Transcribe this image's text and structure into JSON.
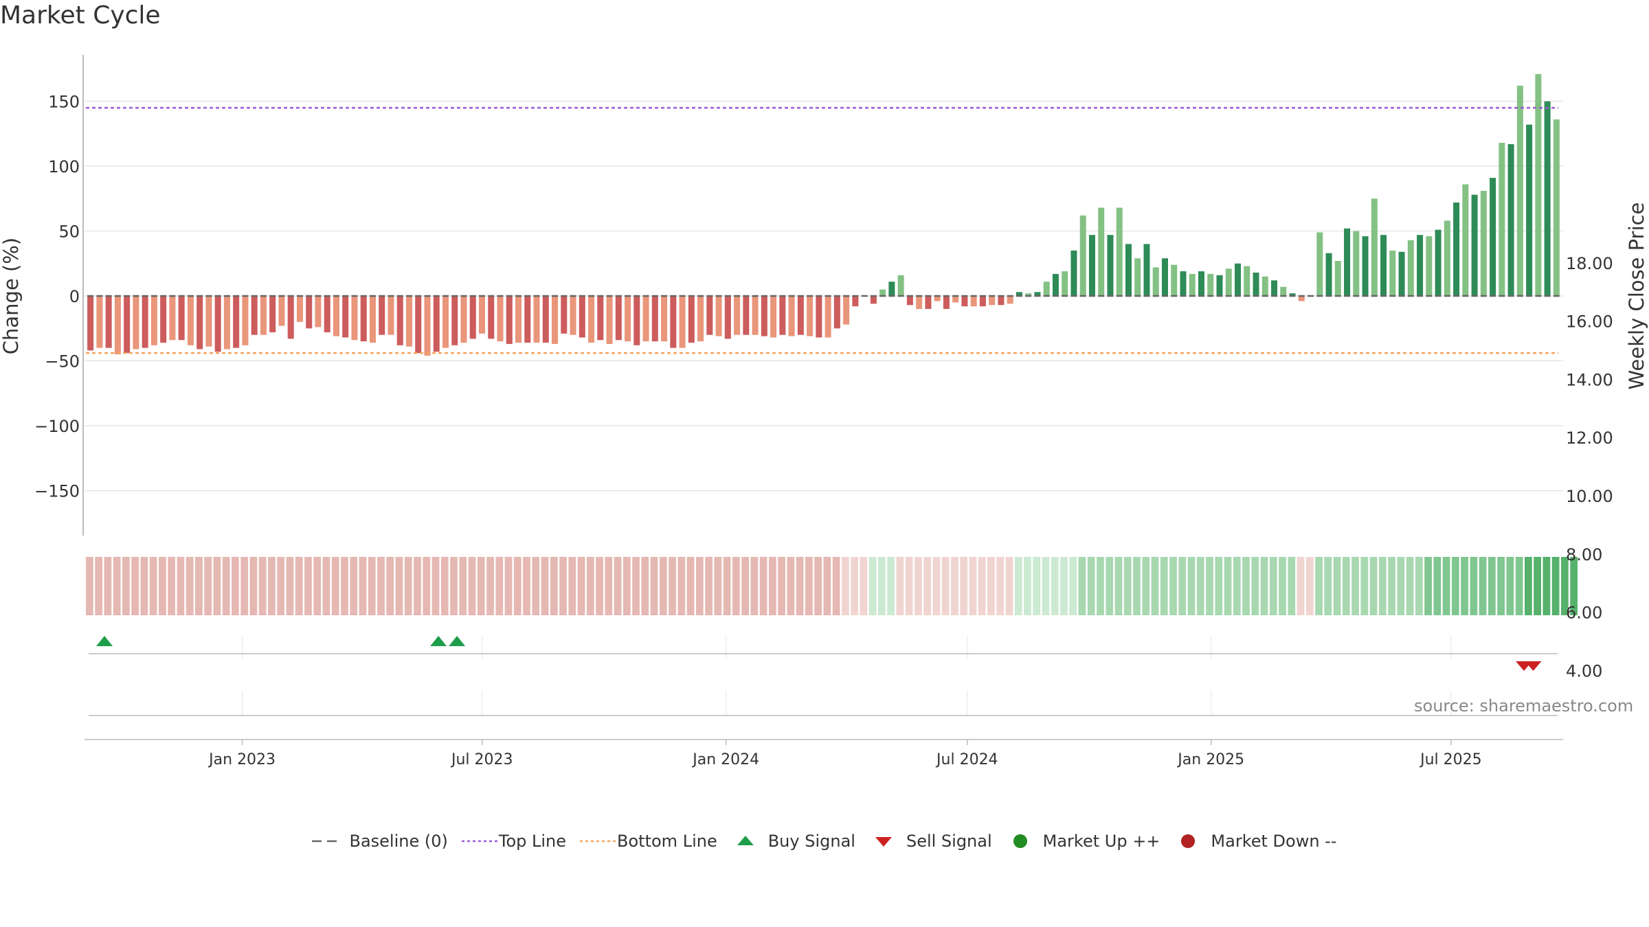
{
  "title": "Market Cycle",
  "source": "source: sharemaestro.com",
  "colors": {
    "up_strong": "#2e8b57",
    "up_light": "#84c184",
    "down_strong": "#cd5c5c",
    "down_light": "#e9967a",
    "top_line": "#9b59d6",
    "bottom_line": "#f4a460",
    "baseline": "#666666",
    "buy": "#1e9e4a",
    "sell": "#cc2222",
    "market_up": "#228b22",
    "market_down": "#b22222"
  },
  "legend": [
    {
      "label": "Baseline (0)",
      "icon": "dash-line"
    },
    {
      "label": "Top Line",
      "icon": "dotted-line"
    },
    {
      "label": "Bottom Line",
      "icon": "dotted-line"
    },
    {
      "label": "Buy Signal",
      "icon": "triangle-up"
    },
    {
      "label": "Sell Signal",
      "icon": "triangle-down"
    },
    {
      "label": "Market Up ++",
      "icon": "circle"
    },
    {
      "label": "Market Down --",
      "icon": "circle"
    }
  ],
  "chart_data": {
    "type": "bar",
    "title": "Market Cycle",
    "ylabel": "Change (%)",
    "y2label": "Weekly Close Price",
    "ylim": [
      -185,
      185
    ],
    "y_ticks": [
      150,
      100,
      50,
      0,
      -50,
      -100,
      -150
    ],
    "y_tick_labels": [
      "150",
      "100",
      "50",
      "0",
      "−50",
      "−100",
      "−150"
    ],
    "y2_ticks": [
      18,
      16,
      14,
      12,
      10,
      8,
      6,
      4
    ],
    "y2_tick_labels": [
      "18.00",
      "16.00",
      "14.00",
      "12.00",
      "10.00",
      "8.00",
      "6.00",
      "4.00"
    ],
    "y2lim": [
      3.0,
      19.6
    ],
    "x_range": [
      "2022-09-05",
      "2025-09-22"
    ],
    "x_ticks": [
      "2023-01-01",
      "2023-07-01",
      "2024-01-01",
      "2024-07-01",
      "2025-01-01",
      "2025-07-01"
    ],
    "x_tick_labels": [
      "Jan 2023",
      "Jul 2023",
      "Jan 2024",
      "Jul 2024",
      "Jan 2025",
      "Jul 2025"
    ],
    "top_line": 145,
    "bottom_line": -44,
    "baseline": 0,
    "grid": true,
    "legend_position": "bottom-center",
    "values": [
      -42,
      -40,
      -40,
      -45,
      -44,
      -41,
      -40,
      -38,
      -36,
      -34,
      -34,
      -38,
      -41,
      -39,
      -43,
      -41,
      -40,
      -38,
      -30,
      -30,
      -28,
      -23,
      -33,
      -20,
      -25,
      -24,
      -28,
      -31,
      -32,
      -34,
      -35,
      -36,
      -30,
      -30,
      -38,
      -39,
      -44,
      -46,
      -43,
      -40,
      -38,
      -36,
      -33,
      -29,
      -33,
      -35,
      -37,
      -36,
      -36,
      -36,
      -36,
      -37,
      -29,
      -30,
      -32,
      -36,
      -34,
      -37,
      -34,
      -35,
      -38,
      -35,
      -35,
      -35,
      -40,
      -40,
      -36,
      -35,
      -30,
      -31,
      -33,
      -30,
      -30,
      -30,
      -31,
      -32,
      -30,
      -31,
      -30,
      -31,
      -32,
      -32,
      -25,
      -22,
      -8,
      0,
      -6,
      5,
      11,
      16,
      -7,
      -10,
      -10,
      -4,
      -10,
      -5,
      -8,
      -8,
      -8,
      -7,
      -7,
      -6,
      3,
      2,
      3,
      11,
      17,
      19,
      35,
      62,
      47,
      68,
      47,
      68,
      40,
      29,
      40,
      22,
      29,
      24,
      19,
      17,
      19,
      17,
      16,
      21,
      25,
      23,
      18,
      15,
      12,
      7,
      2,
      -4,
      0,
      49,
      33,
      27,
      52,
      50,
      46,
      75,
      47,
      35,
      34,
      43,
      47,
      46,
      51,
      58,
      72,
      86,
      78,
      81,
      91,
      118,
      117,
      162,
      132,
      171,
      150,
      136
    ],
    "heat_levels": [
      -3,
      -3,
      -3,
      -3,
      -3,
      -3,
      -3,
      -3,
      -3,
      -3,
      -3,
      -3,
      -3,
      -3,
      -3,
      -3,
      -3,
      -3,
      -3,
      -3,
      -3,
      -3,
      -3,
      -3,
      -3,
      -3,
      -3,
      -3,
      -3,
      -3,
      -3,
      -3,
      -3,
      -3,
      -3,
      -3,
      -3,
      -3,
      -3,
      -3,
      -3,
      -3,
      -3,
      -3,
      -3,
      -3,
      -3,
      -3,
      -3,
      -3,
      -3,
      -3,
      -3,
      -3,
      -3,
      -3,
      -3,
      -3,
      -3,
      -3,
      -3,
      -3,
      -3,
      -3,
      -3,
      -3,
      -3,
      -3,
      -3,
      -3,
      -3,
      -3,
      -3,
      -3,
      -3,
      -3,
      -3,
      -3,
      -3,
      -3,
      -3,
      -3,
      -3,
      -2,
      -2,
      -2,
      1,
      1,
      1,
      -2,
      -2,
      -2,
      -2,
      -2,
      -2,
      -2,
      -2,
      -2,
      -2,
      -2,
      -2,
      -2,
      1,
      1,
      1,
      1,
      1,
      1,
      1,
      2,
      2,
      2,
      2,
      2,
      2,
      2,
      2,
      2,
      2,
      2,
      2,
      2,
      2,
      2,
      2,
      2,
      2,
      2,
      2,
      2,
      2,
      2,
      2,
      -2,
      -2,
      2,
      2,
      2,
      2,
      2,
      2,
      2,
      2,
      2,
      2,
      2,
      2,
      3,
      3,
      3,
      3,
      3,
      3,
      3,
      3,
      3,
      3,
      3,
      4,
      4,
      4,
      4,
      4,
      4
    ],
    "buy_signals": [
      "2022-09-19",
      "2023-05-29",
      "2023-06-12"
    ],
    "sell_signals": [
      "2025-08-25",
      "2025-09-01"
    ]
  }
}
